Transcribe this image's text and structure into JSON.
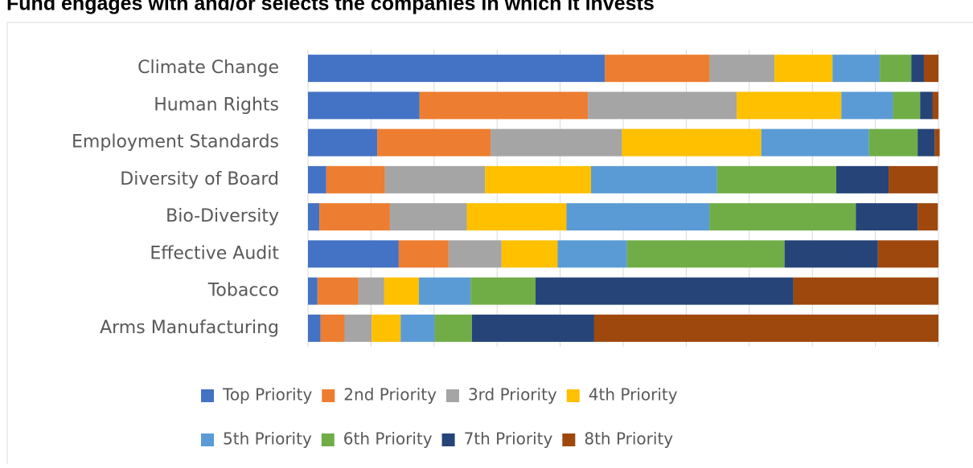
{
  "chart_data": {
    "type": "stacked-bar-horizontal",
    "title": "Fund engages with and/or selects the companies in which it invests",
    "categories": [
      "Climate Change",
      "Human Rights",
      "Employment Standards",
      "Diversity of Board",
      "Bio-Diversity",
      "Effective Audit",
      "Tobacco",
      "Arms Manufacturing"
    ],
    "series": [
      {
        "name": "Top Priority",
        "color": "#4472c4",
        "values": [
          47.1,
          17.7,
          11.0,
          2.9,
          1.8,
          14.4,
          1.5,
          2.0
        ]
      },
      {
        "name": "2nd Priority",
        "color": "#ed7d31",
        "values": [
          16.6,
          26.7,
          18.0,
          9.3,
          11.2,
          7.9,
          6.5,
          3.8
        ]
      },
      {
        "name": "3rd Priority",
        "color": "#a5a5a5",
        "values": [
          10.3,
          23.6,
          20.8,
          15.9,
          12.2,
          8.4,
          4.1,
          4.3
        ]
      },
      {
        "name": "4th Priority",
        "color": "#ffc000",
        "values": [
          9.2,
          16.6,
          22.1,
          16.8,
          15.8,
          8.9,
          5.5,
          4.6
        ]
      },
      {
        "name": "5th Priority",
        "color": "#5b9bd5",
        "values": [
          7.5,
          8.2,
          17.1,
          20.0,
          22.7,
          11.0,
          8.2,
          5.4
        ]
      },
      {
        "name": "6th Priority",
        "color": "#70ad47",
        "values": [
          5.0,
          4.3,
          7.7,
          18.9,
          23.2,
          25.0,
          10.3,
          5.9
        ]
      },
      {
        "name": "7th Priority",
        "color": "#264478",
        "values": [
          2.0,
          2.0,
          2.7,
          8.3,
          9.8,
          14.8,
          40.9,
          19.4
        ]
      },
      {
        "name": "8th Priority",
        "color": "#9e480e",
        "values": [
          2.3,
          0.9,
          0.8,
          7.8,
          3.2,
          9.6,
          23.0,
          54.6
        ]
      }
    ],
    "xlim": [
      0,
      100
    ],
    "xticks": [
      0,
      10,
      20,
      30,
      40,
      50,
      60,
      70,
      80,
      90,
      100
    ],
    "grid": true
  }
}
